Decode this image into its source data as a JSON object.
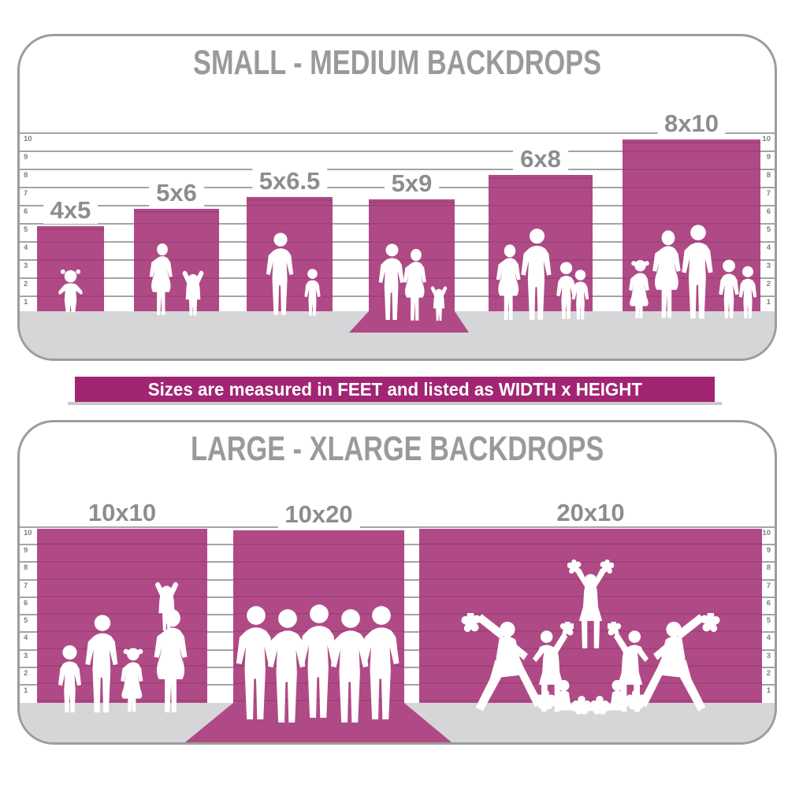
{
  "top_panel": {
    "title": "SMALL - MEDIUM BACKDROPS",
    "scale_labels": [
      "10",
      "9",
      "8",
      "7",
      "6",
      "5",
      "4",
      "3",
      "2",
      "1"
    ],
    "backdrops": [
      {
        "label": "4x5"
      },
      {
        "label": "5x6"
      },
      {
        "label": "5x6.5"
      },
      {
        "label": "5x9"
      },
      {
        "label": "6x8"
      },
      {
        "label": "8x10"
      }
    ]
  },
  "banner": {
    "text": "Sizes are measured in FEET and listed as WIDTH x HEIGHT"
  },
  "bottom_panel": {
    "title": "LARGE - XLARGE BACKDROPS",
    "scale_labels": [
      "10",
      "9",
      "8",
      "7",
      "6",
      "5",
      "4",
      "3",
      "2",
      "1"
    ],
    "backdrops": [
      {
        "label": "10x10"
      },
      {
        "label": "10x20"
      },
      {
        "label": "20x10"
      }
    ]
  },
  "units_note": "FEET",
  "colors": {
    "backdrop_magenta": "#b04a86",
    "banner_magenta": "#a12573",
    "title_gray": "#9a9a9c",
    "label_gray": "#8c8d8f",
    "floor_gray": "#d6d6d8",
    "gridline_gray": "#a4a4a6",
    "border_gray": "#9c9c9e",
    "silhouette_white": "#ffffff"
  }
}
